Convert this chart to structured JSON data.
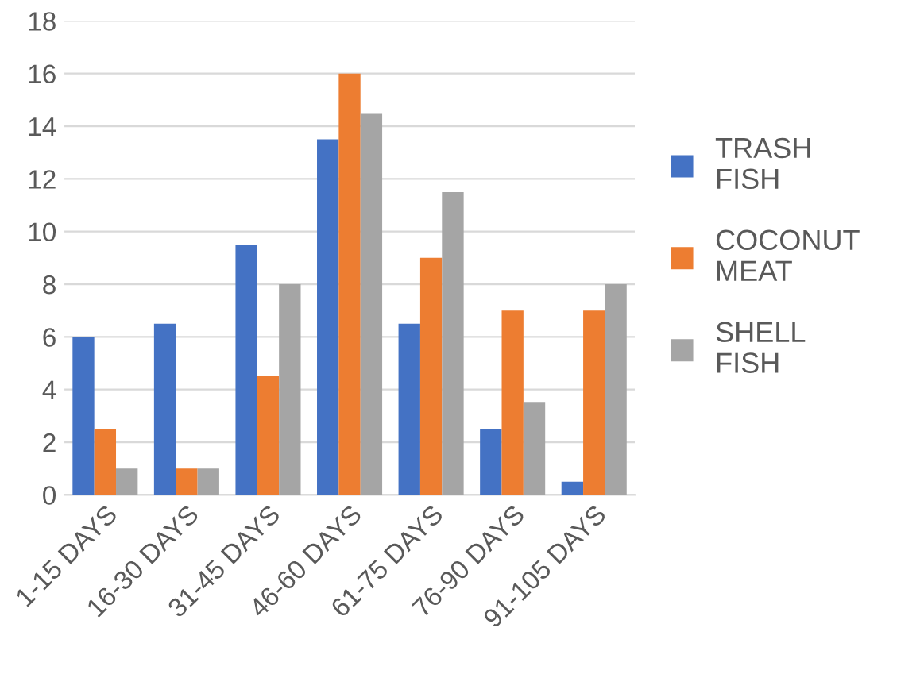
{
  "chart_data": {
    "type": "bar",
    "categories": [
      "1-15 DAYS",
      "16-30 DAYS",
      "31-45 DAYS",
      "46-60 DAYS",
      "61-75 DAYS",
      "76-90 DAYS",
      "91-105 DAYS"
    ],
    "series": [
      {
        "name": "TRASH FISH",
        "color": "#4472c4",
        "values": [
          6,
          6.5,
          9.5,
          13.5,
          6.5,
          2.5,
          0.5
        ]
      },
      {
        "name": "COCONUT MEAT",
        "color": "#ed7d31",
        "values": [
          2.5,
          1,
          4.5,
          16,
          9,
          7,
          7
        ]
      },
      {
        "name": "SHELL FISH",
        "color": "#a5a5a5",
        "values": [
          1,
          1,
          8,
          14.5,
          11.5,
          3.5,
          8
        ]
      }
    ],
    "ylim": [
      0,
      18
    ],
    "yticks": [
      0,
      2,
      4,
      6,
      8,
      10,
      12,
      14,
      16,
      18
    ],
    "grid": "y",
    "legend": "right"
  }
}
